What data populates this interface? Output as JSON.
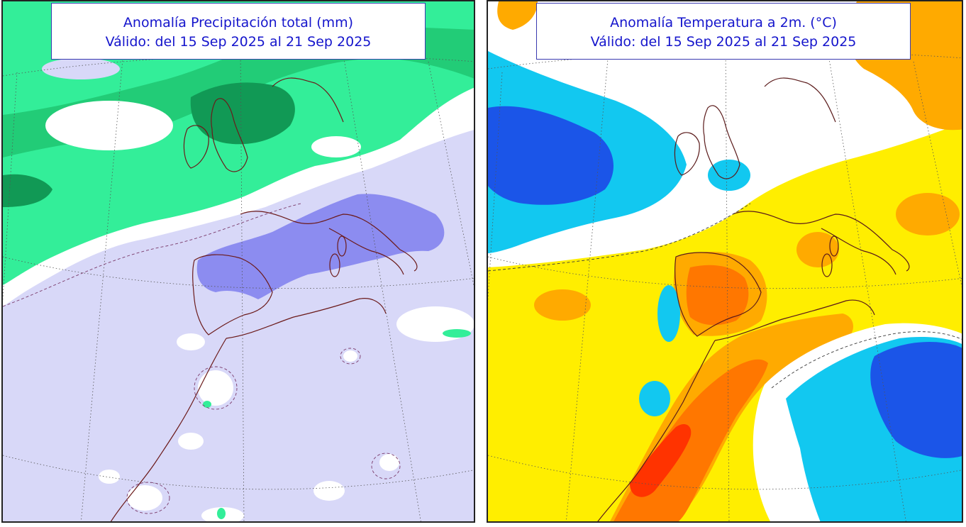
{
  "panels": {
    "precipitation": {
      "title": "Anomalía Precipitación total (mm)",
      "validity": "Válido: del 15 Sep 2025 al 21 Sep 2025",
      "colors": {
        "dry_light": "#d8d8f8",
        "dry_medium": "#8c8cf0",
        "neutral": "#ffffff",
        "wet_light": "#33ee99",
        "wet_medium": "#22cc77",
        "wet_dark": "#119955",
        "coast": "#6b1a1a",
        "contour": "#7a3a6a"
      }
    },
    "temperature": {
      "title": "Anomalía Temperatura a 2m. (°C)",
      "validity": "Válido: del 15 Sep 2025 al 21 Sep 2025",
      "colors": {
        "cold_strong": "#1b55e8",
        "cold": "#12c8f0",
        "neutral": "#ffffff",
        "warm_light": "#ffee00",
        "warm": "#ffaa00",
        "warm_strong": "#ff7700",
        "hot": "#ff3300",
        "coast": "#5a1a1a",
        "contour": "#3a3a3a"
      }
    }
  }
}
